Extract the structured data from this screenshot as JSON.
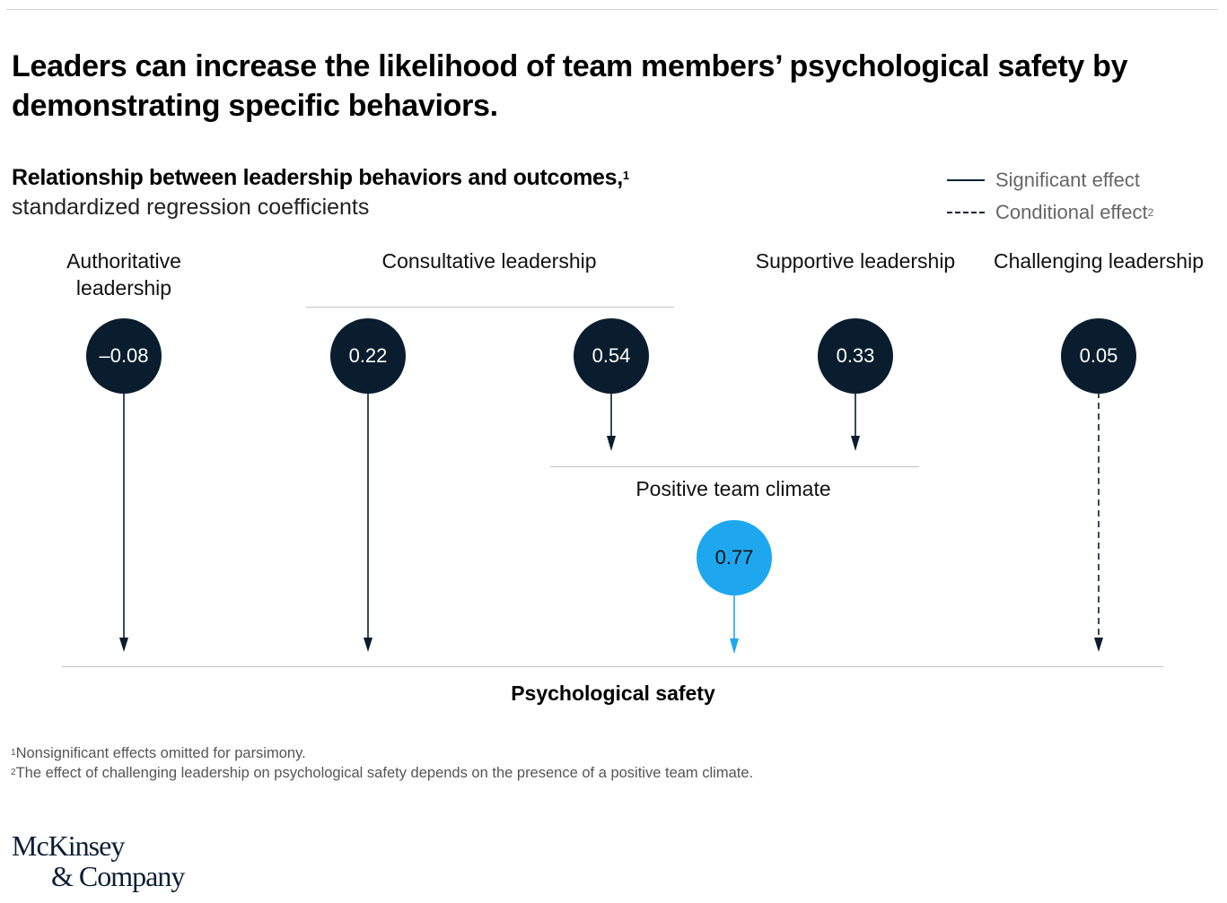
{
  "title": "Leaders can increase the likelihood of team members’ psychological safety by demonstrating specific behaviors.",
  "subtitle": {
    "main": "Relationship between leadership behaviors and outcomes,",
    "footnote_ref": "1",
    "units": "standardized regression coefficients"
  },
  "legend": [
    {
      "label": "Significant effect",
      "style": "solid",
      "footnote_ref": ""
    },
    {
      "label": "Conditional effect",
      "style": "dashed",
      "footnote_ref": "2"
    }
  ],
  "groups": {
    "authoritative": "Authoritative leadership",
    "consultative": "Consultative leadership",
    "supportive": "Supportive leadership",
    "challenging": "Challenging leadership"
  },
  "nodes": {
    "authoritative": {
      "value": "–0.08",
      "target": "Psychological safety",
      "effect": "significant"
    },
    "consultative_safety": {
      "value": "0.22",
      "target": "Psychological safety",
      "effect": "significant"
    },
    "consultative_climate": {
      "value": "0.54",
      "target": "Positive team climate",
      "effect": "significant"
    },
    "supportive": {
      "value": "0.33",
      "target": "Positive team climate",
      "effect": "significant"
    },
    "challenging": {
      "value": "0.05",
      "target": "Psychological safety",
      "effect": "conditional"
    },
    "climate": {
      "value": "0.77",
      "target": "Psychological safety",
      "effect": "significant"
    }
  },
  "climate_label": "Positive team climate",
  "outcome_label": "Psychological safety",
  "footnotes": [
    {
      "ref": "1",
      "text": "Nonsignificant effects omitted for parsimony."
    },
    {
      "ref": "2",
      "text": "The effect of challenging leadership on psychological safety depends on the presence of a positive team climate."
    }
  ],
  "logo": {
    "line1": "McKinsey",
    "line2": "& Company"
  },
  "colors": {
    "dark": "#0a1d2e",
    "accent": "#1ea7ee",
    "rule": "#c2c2c2"
  }
}
